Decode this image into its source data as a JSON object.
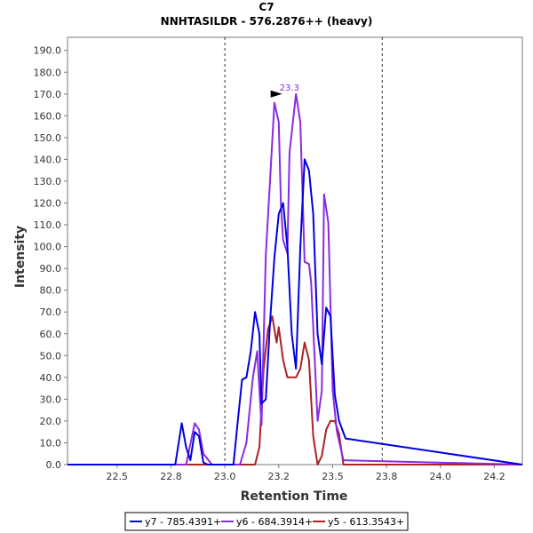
{
  "chart_data": {
    "type": "line",
    "title": "C7",
    "subtitle": "NNHTASILDR - 576.2876++ (heavy)",
    "xlabel": "Retention Time",
    "ylabel": "Intensity",
    "xlim": [
      22.27,
      24.38
    ],
    "ylim": [
      0,
      196
    ],
    "x_ticks": [
      "22.5",
      "22.8",
      "23.0",
      "23.2",
      "23.5",
      "23.8",
      "24.0",
      "24.2"
    ],
    "x_tick_values": [
      22.5,
      22.75,
      23.0,
      23.25,
      23.5,
      23.75,
      24.0,
      24.25
    ],
    "y_ticks": [
      "0.0",
      "10.0",
      "20.0",
      "30.0",
      "40.0",
      "50.0",
      "60.0",
      "70.0",
      "80.0",
      "90.0",
      "100.0",
      "110.0",
      "120.0",
      "130.0",
      "140.0",
      "150.0",
      "160.0",
      "170.0",
      "180.0",
      "190.0"
    ],
    "y_tick_values": [
      0,
      10,
      20,
      30,
      40,
      50,
      60,
      70,
      80,
      90,
      100,
      110,
      120,
      130,
      140,
      150,
      160,
      170,
      180,
      190
    ],
    "vlines": [
      23.0,
      23.73
    ],
    "grid": false,
    "legend_position": "bottom",
    "annotation": {
      "text": "23.3",
      "x": 23.27,
      "y": 170,
      "color": "#8a2be2"
    },
    "series": [
      {
        "name": "y7 - 785.4391+",
        "color": "#0000e0",
        "x": [
          22.27,
          22.77,
          22.8,
          22.82,
          22.84,
          22.86,
          22.88,
          22.9,
          22.92,
          23.04,
          23.06,
          23.08,
          23.1,
          23.12,
          23.14,
          23.16,
          23.17,
          23.19,
          23.21,
          23.23,
          23.25,
          23.27,
          23.29,
          23.31,
          23.33,
          23.35,
          23.37,
          23.39,
          23.41,
          23.43,
          23.45,
          23.47,
          23.49,
          23.51,
          23.53,
          23.56,
          24.38
        ],
        "y": [
          0,
          0,
          19,
          8,
          2,
          15,
          13,
          1,
          0,
          0,
          20,
          39,
          40,
          52,
          70,
          60,
          28,
          30,
          66,
          95,
          115,
          120,
          100,
          60,
          44,
          100,
          140,
          135,
          115,
          60,
          46,
          72,
          68,
          32,
          20,
          12,
          0
        ]
      },
      {
        "name": "y6 - 684.3914+",
        "color": "#8a2be2",
        "x": [
          22.27,
          22.82,
          22.86,
          22.88,
          22.9,
          22.94,
          22.96,
          23.07,
          23.1,
          23.13,
          23.15,
          23.17,
          23.19,
          23.21,
          23.23,
          23.25,
          23.26,
          23.27,
          23.29,
          23.3,
          23.33,
          23.35,
          23.37,
          23.39,
          23.4,
          23.43,
          23.45,
          23.46,
          23.48,
          23.5,
          23.52,
          23.55,
          24.38
        ],
        "y": [
          0,
          0,
          19,
          16,
          5,
          0,
          0,
          0,
          10,
          40,
          52,
          18,
          96,
          131,
          166,
          157,
          120,
          103,
          97,
          143,
          170,
          157,
          93,
          92,
          84,
          20,
          34,
          124,
          111,
          34,
          15,
          2,
          0
        ]
      },
      {
        "name": "y5 - 613.3543+",
        "color": "#aa2222",
        "x": [
          22.27,
          23.14,
          23.16,
          23.18,
          23.2,
          23.22,
          23.24,
          23.25,
          23.27,
          23.29,
          23.31,
          23.33,
          23.35,
          23.37,
          23.39,
          23.41,
          23.43,
          23.45,
          23.47,
          23.49,
          23.51,
          23.53,
          23.55,
          24.38
        ],
        "y": [
          0,
          0,
          8,
          44,
          62,
          68,
          56,
          63,
          48,
          40,
          40,
          40,
          44,
          56,
          48,
          13,
          0,
          4,
          16,
          20,
          20,
          14,
          0,
          0
        ]
      }
    ]
  }
}
